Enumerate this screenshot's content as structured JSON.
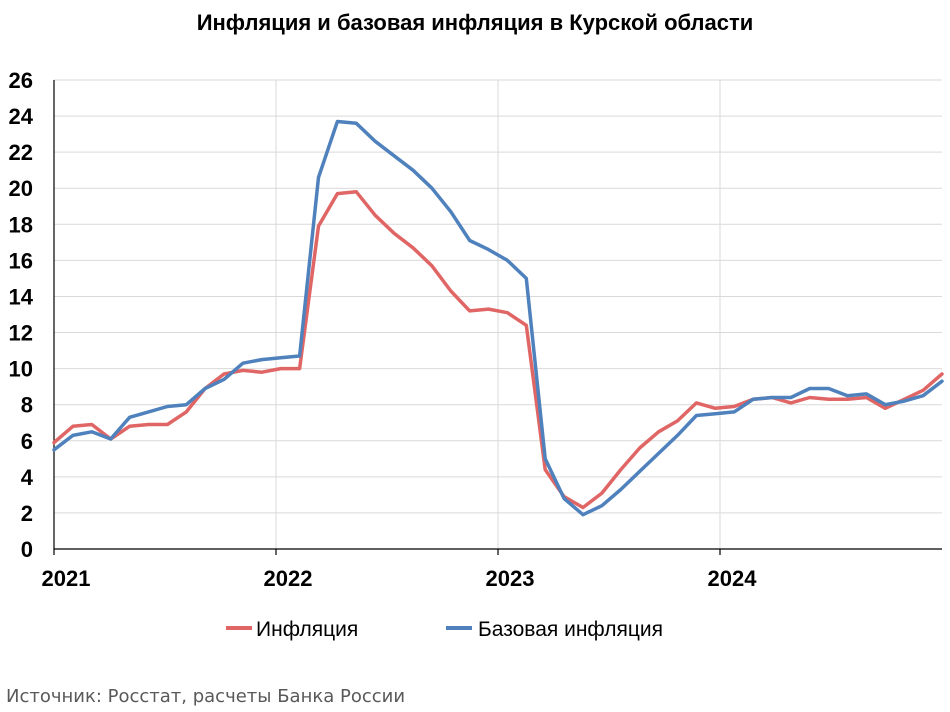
{
  "chart_data": {
    "type": "line",
    "title": "Инфляция и базовая инфляция в Курской области",
    "source": "Источник: Росстат, расчеты Банка России",
    "ylim": [
      0,
      26
    ],
    "yticks": [
      "0",
      "2",
      "4",
      "6",
      "8",
      "10",
      "12",
      "14",
      "16",
      "18",
      "20",
      "22",
      "24",
      "26"
    ],
    "xticks": [
      "2021",
      "2022",
      "2023",
      "2024"
    ],
    "grid": true,
    "legend_position": "bottom",
    "x": [
      "2021-01",
      "2021-02",
      "2021-03",
      "2021-04",
      "2021-05",
      "2021-06",
      "2021-07",
      "2021-08",
      "2021-09",
      "2021-10",
      "2021-11",
      "2021-12",
      "2022-01",
      "2022-02",
      "2022-03",
      "2022-04",
      "2022-05",
      "2022-06",
      "2022-07",
      "2022-08",
      "2022-09",
      "2022-10",
      "2022-11",
      "2022-12",
      "2023-01",
      "2023-02",
      "2023-03",
      "2023-04",
      "2023-05",
      "2023-06",
      "2023-07",
      "2023-08",
      "2023-09",
      "2023-10",
      "2023-11",
      "2023-12",
      "2024-01",
      "2024-02",
      "2024-03",
      "2024-04",
      "2024-05",
      "2024-06",
      "2024-07",
      "2024-08",
      "2024-09",
      "2024-10",
      "2024-11",
      "2024-12"
    ],
    "series": [
      {
        "name": "Инфляция",
        "color": "#E06666",
        "values": [
          5.9,
          6.8,
          6.9,
          6.1,
          6.8,
          6.9,
          6.9,
          7.6,
          8.9,
          9.7,
          9.9,
          9.8,
          10.0,
          10.0,
          17.9,
          19.7,
          19.8,
          18.5,
          17.5,
          16.7,
          15.7,
          14.3,
          13.2,
          13.3,
          13.1,
          12.4,
          4.4,
          2.9,
          2.3,
          3.1,
          4.4,
          5.6,
          6.5,
          7.1,
          8.1,
          7.8,
          7.9,
          8.3,
          8.4,
          8.1,
          8.4,
          8.3,
          8.3,
          8.4,
          7.8,
          8.3,
          8.8,
          9.7
        ],
        "y_of_first_point": 5.9
      },
      {
        "name": "Базовая инфляция",
        "color": "#4F81BD",
        "values": [
          5.5,
          6.3,
          6.5,
          6.1,
          7.3,
          7.6,
          7.9,
          8.0,
          8.9,
          9.4,
          10.3,
          10.5,
          10.6,
          10.7,
          20.6,
          23.7,
          23.6,
          22.6,
          21.8,
          21.0,
          20.0,
          18.7,
          17.1,
          16.6,
          16.0,
          15.0,
          5.0,
          2.8,
          1.9,
          2.4,
          3.3,
          4.3,
          5.3,
          6.3,
          7.4,
          7.5,
          7.6,
          8.3,
          8.4,
          8.4,
          8.9,
          8.9,
          8.5,
          8.6,
          8.0,
          8.2,
          8.5,
          9.3
        ]
      }
    ]
  }
}
